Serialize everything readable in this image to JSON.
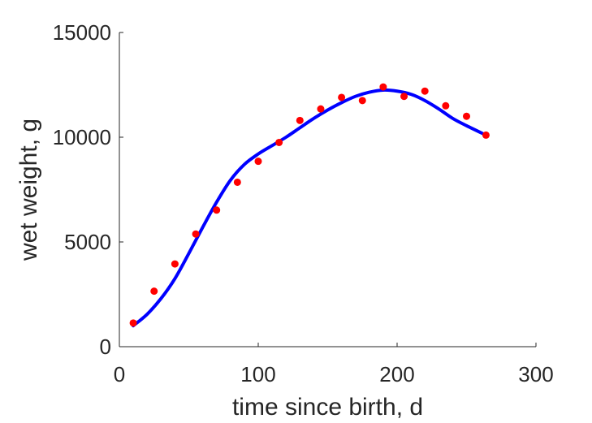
{
  "chart_data": {
    "type": "scatter",
    "title": "",
    "xlabel": "time since birth, d",
    "ylabel": "wet weight, g",
    "xlim": [
      0,
      300
    ],
    "ylim": [
      0,
      15000
    ],
    "xticks": [
      0,
      100,
      200,
      300
    ],
    "yticks": [
      0,
      5000,
      10000,
      15000
    ],
    "xtick_labels": [
      "0",
      "100",
      "200",
      "300"
    ],
    "ytick_labels": [
      "0",
      "5000",
      "10000",
      "15000"
    ],
    "grid": false,
    "legend": "none",
    "series": [
      {
        "kind": "scatter",
        "color": "#ff0000",
        "x": [
          10,
          25,
          40,
          55,
          70,
          85,
          100,
          115,
          130,
          145,
          160,
          175,
          190,
          205,
          220,
          235,
          250,
          264
        ],
        "y": [
          1130,
          2650,
          3950,
          5380,
          6520,
          7850,
          8850,
          9750,
          10800,
          11350,
          11900,
          11750,
          12400,
          11950,
          12200,
          11500,
          11000,
          10100
        ]
      },
      {
        "kind": "line",
        "color": "#0000ff",
        "x": [
          10,
          20,
          30,
          40,
          50,
          60,
          70,
          80,
          90,
          100,
          110,
          120,
          130,
          140,
          150,
          160,
          170,
          180,
          190,
          200,
          210,
          220,
          230,
          240,
          250,
          264
        ],
        "y": [
          1000,
          1550,
          2300,
          3250,
          4450,
          5700,
          6900,
          7950,
          8700,
          9200,
          9600,
          10000,
          10450,
          10900,
          11300,
          11650,
          11950,
          12150,
          12250,
          12200,
          12050,
          11750,
          11350,
          10900,
          10550,
          10100
        ]
      }
    ]
  }
}
